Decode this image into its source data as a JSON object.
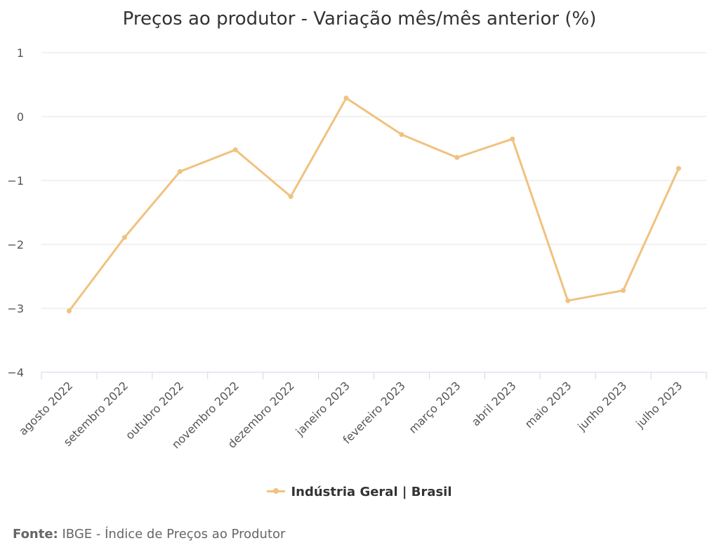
{
  "chart_data": {
    "type": "line",
    "title": "Preços ao produtor - Variação mês/mês anterior (%)",
    "categories": [
      "agosto 2022",
      "setembro 2022",
      "outubro 2022",
      "novembro 2022",
      "dezembro 2022",
      "janeiro 2023",
      "fevereiro 2023",
      "março 2023",
      "abril 2023",
      "maio 2023",
      "junho 2023",
      "julho 2023"
    ],
    "series": [
      {
        "name": "Indústria Geral | Brasil",
        "color": "#F0C27F",
        "values": [
          -3.04,
          -1.89,
          -0.86,
          -0.52,
          -1.25,
          0.29,
          -0.28,
          -0.64,
          -0.35,
          -2.88,
          -2.72,
          -0.81
        ]
      }
    ],
    "ylim": [
      -4,
      1
    ],
    "yticks": [
      "1",
      "0",
      "−1",
      "−2",
      "−3",
      "−4"
    ],
    "grid": true,
    "legend_position": "bottom"
  },
  "source": {
    "label": "Fonte:",
    "text": "IBGE - Índice de Preços ao Produtor"
  }
}
